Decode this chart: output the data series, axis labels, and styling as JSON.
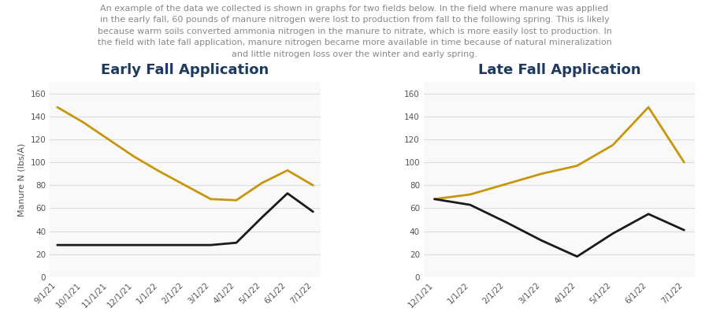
{
  "title_text": "An example of the data we collected is shown in graphs for two fields below. In the field where manure was applied\nin the early fall, 60 pounds of manure nitrogen were lost to production from fall to the following spring. This is likely\nbecause warm soils converted ammonia nitrogen in the manure to nitrate, which is more easily lost to production. In\nthe field with late fall application, manure nitrogen became more available in time because of natural mineralization\nand little nitrogen loss over the winter and early spring.",
  "chart1_title": "Early Fall Application",
  "chart2_title": "Late Fall Application",
  "ylabel": "Manure N (lbs/A)",
  "chart1_x_labels": [
    "9/1/21",
    "10/1/21",
    "11/1/21",
    "12/1/21",
    "1/1/22",
    "2/1/22",
    "3/1/22",
    "4/1/22",
    "5/1/22",
    "6/1/22",
    "7/1/22"
  ],
  "chart1_manure": [
    148,
    135,
    120,
    105,
    92,
    80,
    68,
    67,
    82,
    93,
    80
  ],
  "chart1_nomanure": [
    28,
    28,
    28,
    28,
    28,
    28,
    28,
    30,
    52,
    73,
    57
  ],
  "chart2_x_labels": [
    "12/1/21",
    "1/1/22",
    "2/1/22",
    "3/1/22",
    "4/1/22",
    "5/1/22",
    "6/1/22",
    "7/1/22"
  ],
  "chart2_manure": [
    68,
    72,
    81,
    90,
    97,
    115,
    148,
    100
  ],
  "chart2_nomanure": [
    68,
    63,
    48,
    32,
    18,
    38,
    55,
    41
  ],
  "manure_color": "#C8960C",
  "nomanure_color": "#1A1A1A",
  "title_color": "#1E3A5F",
  "text_color": "#888888",
  "bg_color": "#FFFFFF",
  "plot_bg_color": "#F9F9F9",
  "grid_color": "#DDDDDD",
  "ylim": [
    0,
    170
  ],
  "yticks": [
    0,
    20,
    40,
    60,
    80,
    100,
    120,
    140,
    160
  ],
  "chart_title_fontsize": 13,
  "label_fontsize": 8,
  "tick_fontsize": 7.5,
  "legend_fontsize": 8.5,
  "line_width": 2.0,
  "header_fontsize": 8.0
}
